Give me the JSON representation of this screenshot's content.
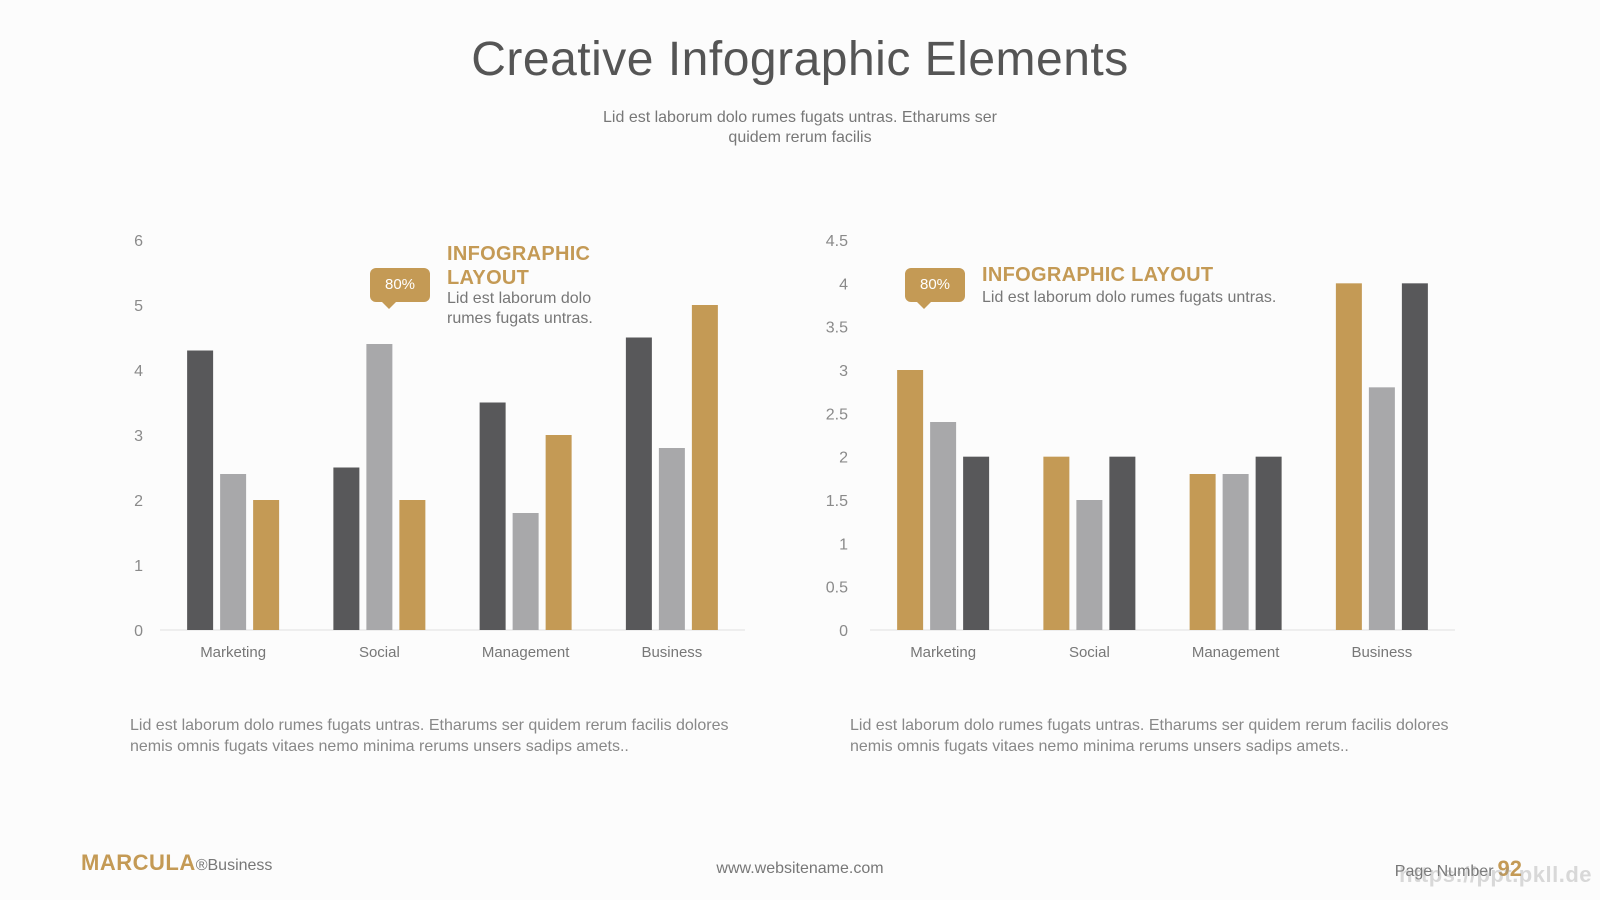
{
  "header": {
    "title": "Creative Infographic Elements",
    "subtitle": "Lid est laborum dolo rumes fugats untras. Etharums ser quidem rerum facilis"
  },
  "colors": {
    "dark": "#58585a",
    "gray": "#a8a8aa",
    "gold": "#c49a55",
    "axis": "#e0e0e0"
  },
  "chart_data": [
    {
      "type": "bar",
      "categories": [
        "Marketing",
        "Social",
        "Management",
        "Business"
      ],
      "series": [
        {
          "values": [
            4.3,
            2.5,
            3.5,
            4.5
          ],
          "color": "#58585a"
        },
        {
          "values": [
            2.4,
            4.4,
            1.8,
            2.8
          ],
          "color": "#a8a8aa"
        },
        {
          "values": [
            2.0,
            2.0,
            3.0,
            5.0
          ],
          "color": "#c49a55"
        }
      ],
      "ylim": [
        0,
        6
      ],
      "yticks": [
        "0",
        "1",
        "2",
        "3",
        "4",
        "5",
        "6"
      ],
      "grid": false,
      "legend": "none"
    },
    {
      "type": "bar",
      "categories": [
        "Marketing",
        "Social",
        "Management",
        "Business"
      ],
      "series": [
        {
          "values": [
            3.0,
            2.0,
            1.8,
            4.0
          ],
          "color": "#c49a55"
        },
        {
          "values": [
            2.4,
            1.5,
            1.8,
            2.8
          ],
          "color": "#a8a8aa"
        },
        {
          "values": [
            2.0,
            2.0,
            2.0,
            4.0
          ],
          "color": "#58585a"
        }
      ],
      "ylim": [
        0,
        4.5
      ],
      "yticks": [
        "0",
        "0.5",
        "1",
        "1.5",
        "2",
        "2.5",
        "3",
        "3.5",
        "4",
        "4.5"
      ],
      "grid": false,
      "legend": "none"
    }
  ],
  "left_panel": {
    "callout": "80%",
    "heading_line1": "INFOGRAPHIC",
    "heading_line2": "LAYOUT",
    "text_line1": "Lid est laborum dolo",
    "text_line2": "rumes fugats untras.",
    "paragraph": "Lid est laborum dolo rumes fugats untras. Etharums ser quidem rerum facilis dolores nemis omnis fugats vitaes nemo minima rerums unsers sadips amets.."
  },
  "right_panel": {
    "callout": "80%",
    "heading": "INFOGRAPHIC LAYOUT",
    "text": "Lid est laborum dolo rumes fugats untras.",
    "paragraph": "Lid est laborum dolo rumes fugats untras. Etharums ser quidem rerum facilis dolores nemis omnis fugats vitaes nemo minima rerums unsers sadips amets.."
  },
  "footer": {
    "brand": "MARCULA",
    "brand_suffix": "®Business",
    "url": "www.websitename.com",
    "page_label": "Page Number",
    "page_number": "92",
    "watermark": "https://ppt.pkll.de"
  }
}
